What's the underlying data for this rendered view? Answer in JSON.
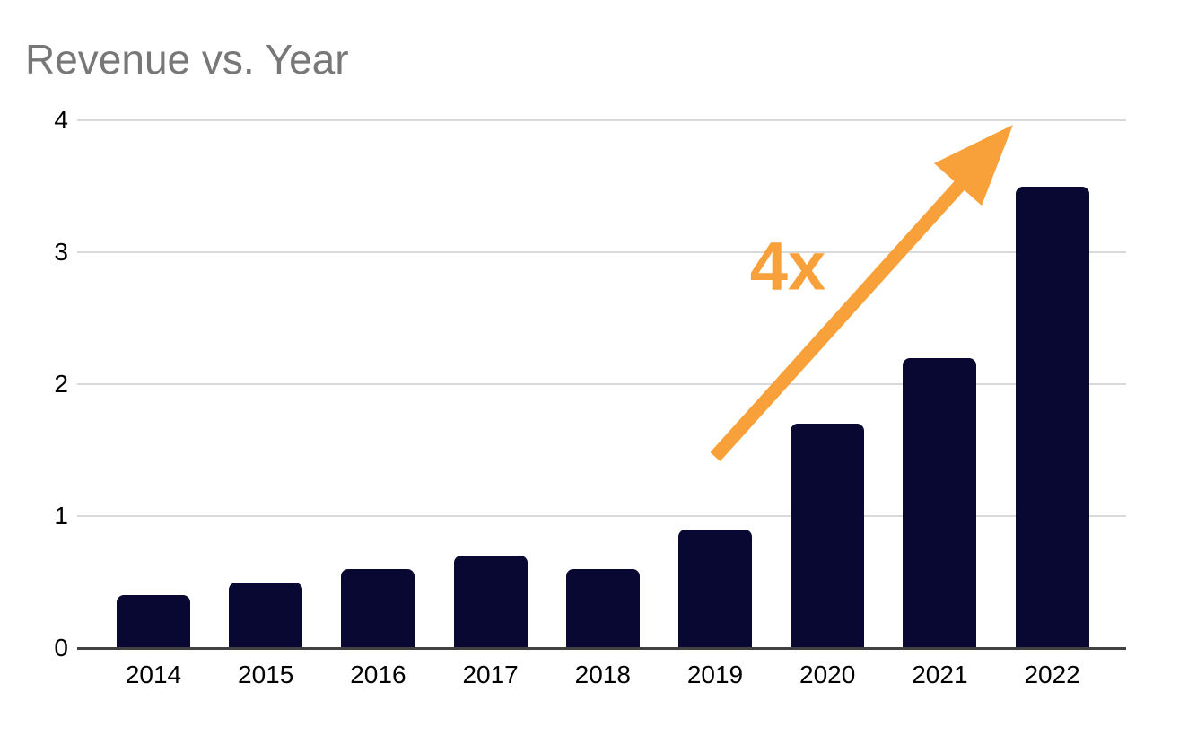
{
  "chart_data": {
    "type": "bar",
    "title": "Revenue vs. Year",
    "categories": [
      "2014",
      "2015",
      "2016",
      "2017",
      "2018",
      "2019",
      "2020",
      "2021",
      "2022"
    ],
    "values": [
      0.4,
      0.5,
      0.6,
      0.7,
      0.6,
      0.9,
      1.7,
      2.2,
      3.5
    ],
    "xlabel": "",
    "ylabel": "",
    "ylim": [
      0,
      4
    ],
    "yticks": [
      0,
      1,
      2,
      3,
      4
    ],
    "ytick_labels": [
      "0",
      "1",
      "2",
      "3",
      "4"
    ],
    "grid": true,
    "legend": "none",
    "annotation": {
      "text": "4x"
    },
    "colors": {
      "bar": "#080833",
      "accent_orange": "#f8a13a",
      "title_gray": "#777777",
      "axis_line": "#424242",
      "gridline": "#d9d9d9",
      "tick_label": "#000000",
      "background": "#ffffff"
    }
  }
}
